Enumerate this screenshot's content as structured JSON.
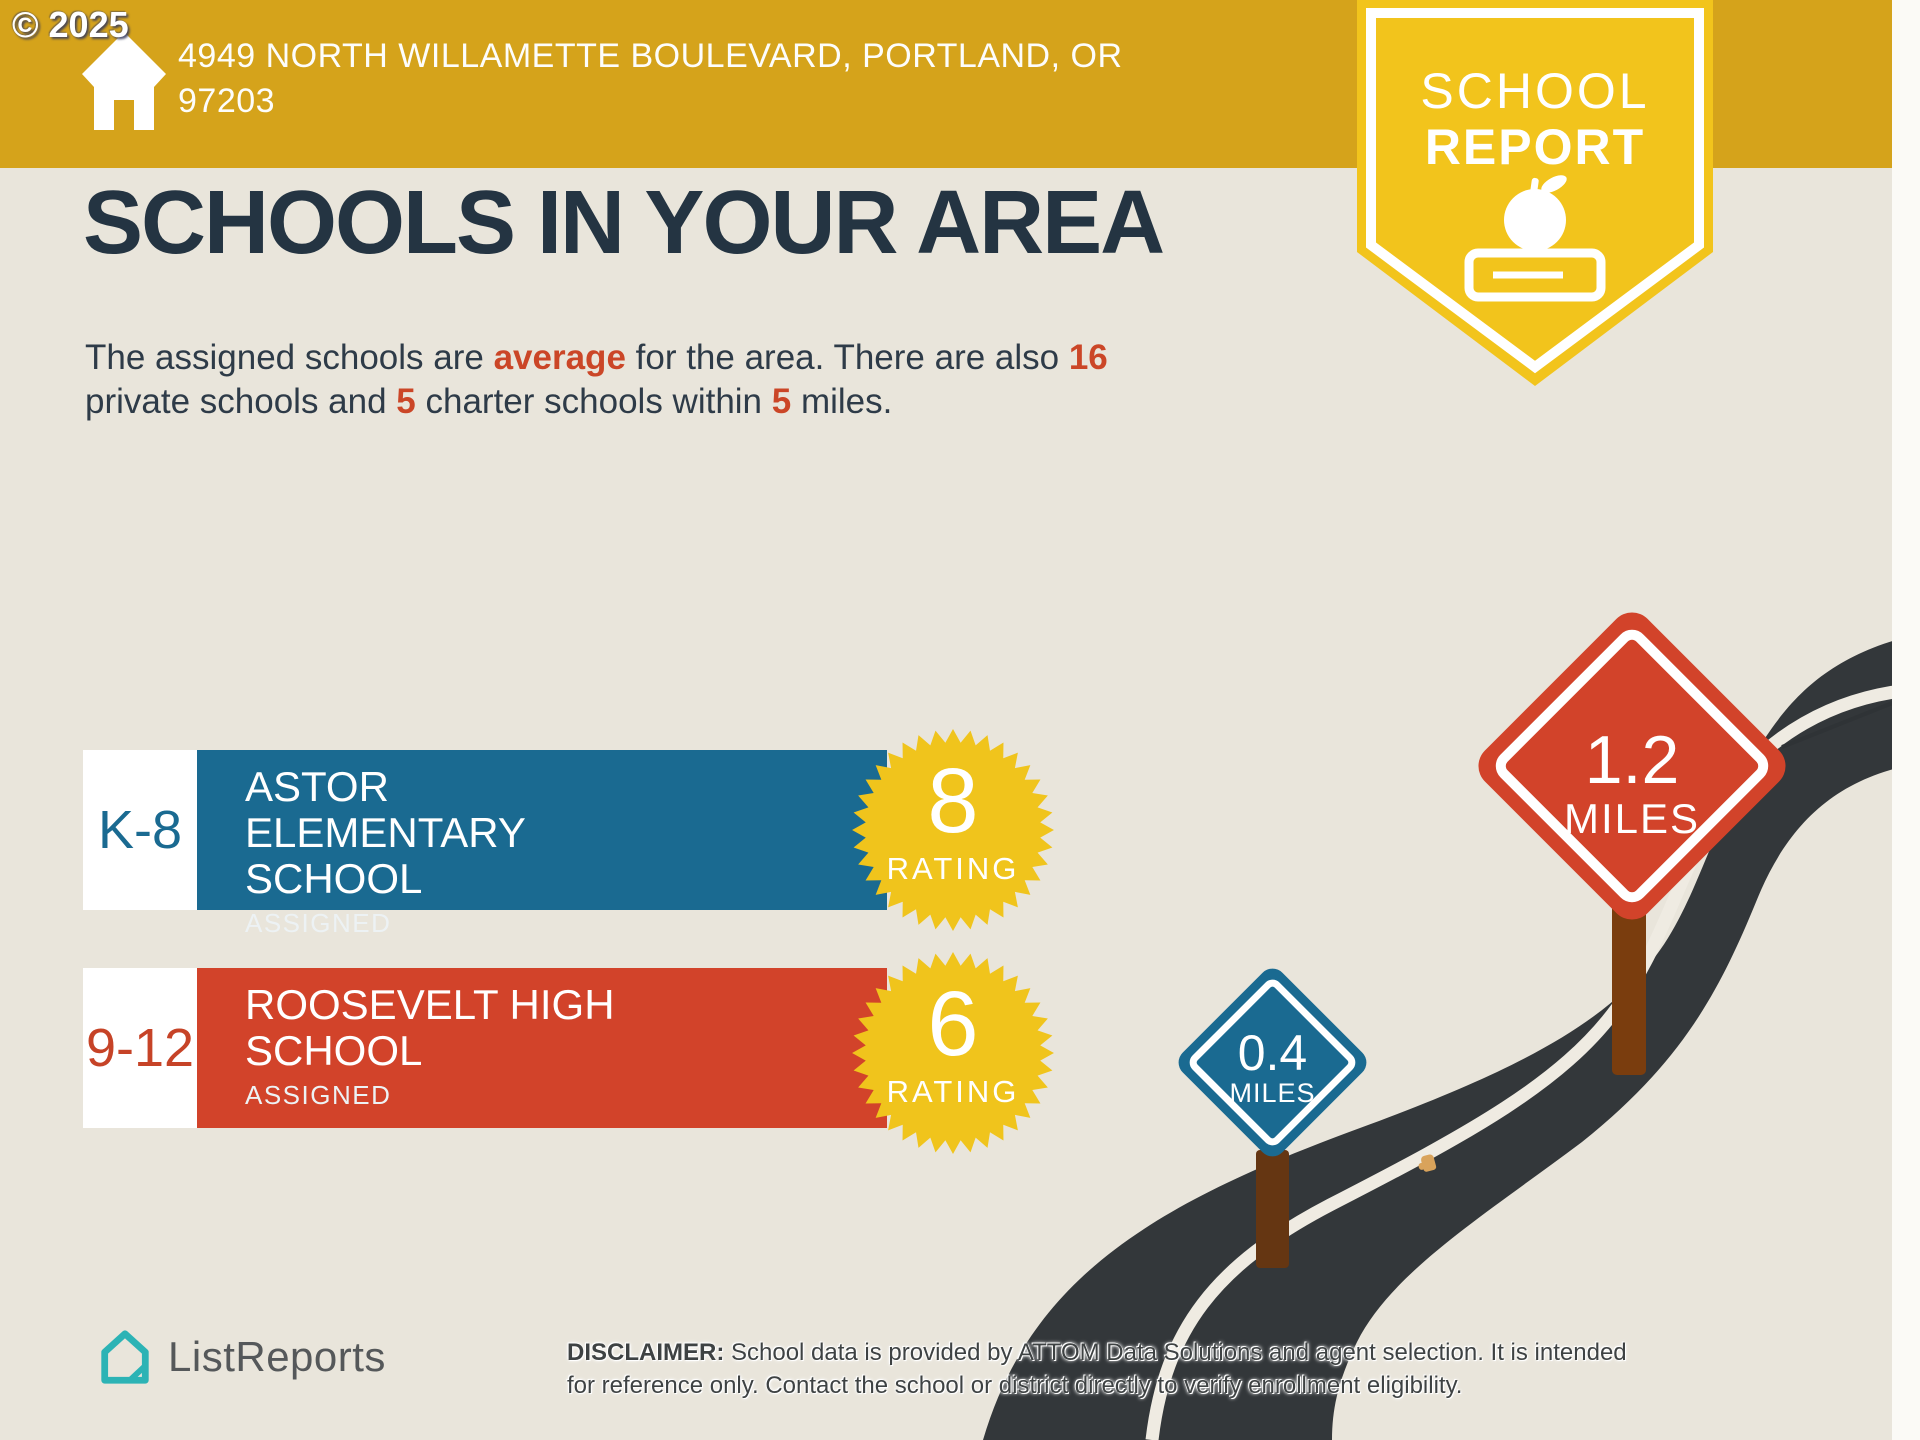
{
  "watermark": "© 2025",
  "header": {
    "address_line1": "4949 NORTH WILLAMETTE BOULEVARD, PORTLAND, OR",
    "address_line2": "97203"
  },
  "badge": {
    "title_line1": "SCHOOL",
    "title_line2": "REPORT"
  },
  "page": {
    "title": "SCHOOLS IN YOUR AREA"
  },
  "intro": {
    "line1_text1": "The assigned schools are ",
    "line1_highlight1": "average",
    "line1_text2": " for the area. There are also ",
    "line1_highlight2": "16",
    "line2_text1": "private schools and ",
    "line2_highlight1": "5",
    "line2_text2": " charter schools within ",
    "line2_highlight2": "5",
    "line2_text3": " miles."
  },
  "schools": [
    {
      "grades": "K-8",
      "name": "ASTOR ELEMENTARY SCHOOL",
      "status": "ASSIGNED",
      "rating": "8",
      "rating_label": "RATING",
      "distance": "1.2",
      "distance_unit": "MILES"
    },
    {
      "grades": "9-12",
      "name": "ROOSEVELT HIGH SCHOOL",
      "status": "ASSIGNED",
      "rating": "6",
      "rating_label": "RATING",
      "distance": "0.4",
      "distance_unit": "MILES"
    }
  ],
  "footer": {
    "brand": "ListReports",
    "disclaimer_label": "DISCLAIMER:",
    "disclaimer_line1": " School data is provided by ATTOM Data Solutions and agent selection. It is intended",
    "disclaimer_line2": "for reference only. Contact the school or district directly to verify enrollment eligibility."
  },
  "colors": {
    "banner_gold": "#D5A31B",
    "badge_yellow": "#F2C41C",
    "background": "#E9E5DB",
    "title_navy": "#243442",
    "accent_red": "#CB4627",
    "bar_blue": "#1A6A91",
    "bar_red": "#D2432A",
    "star_yellow": "#F0C41C",
    "road_dark": "#33373A",
    "post_brown": "#7A3D0E",
    "brand_teal": "#2CB3B5"
  }
}
